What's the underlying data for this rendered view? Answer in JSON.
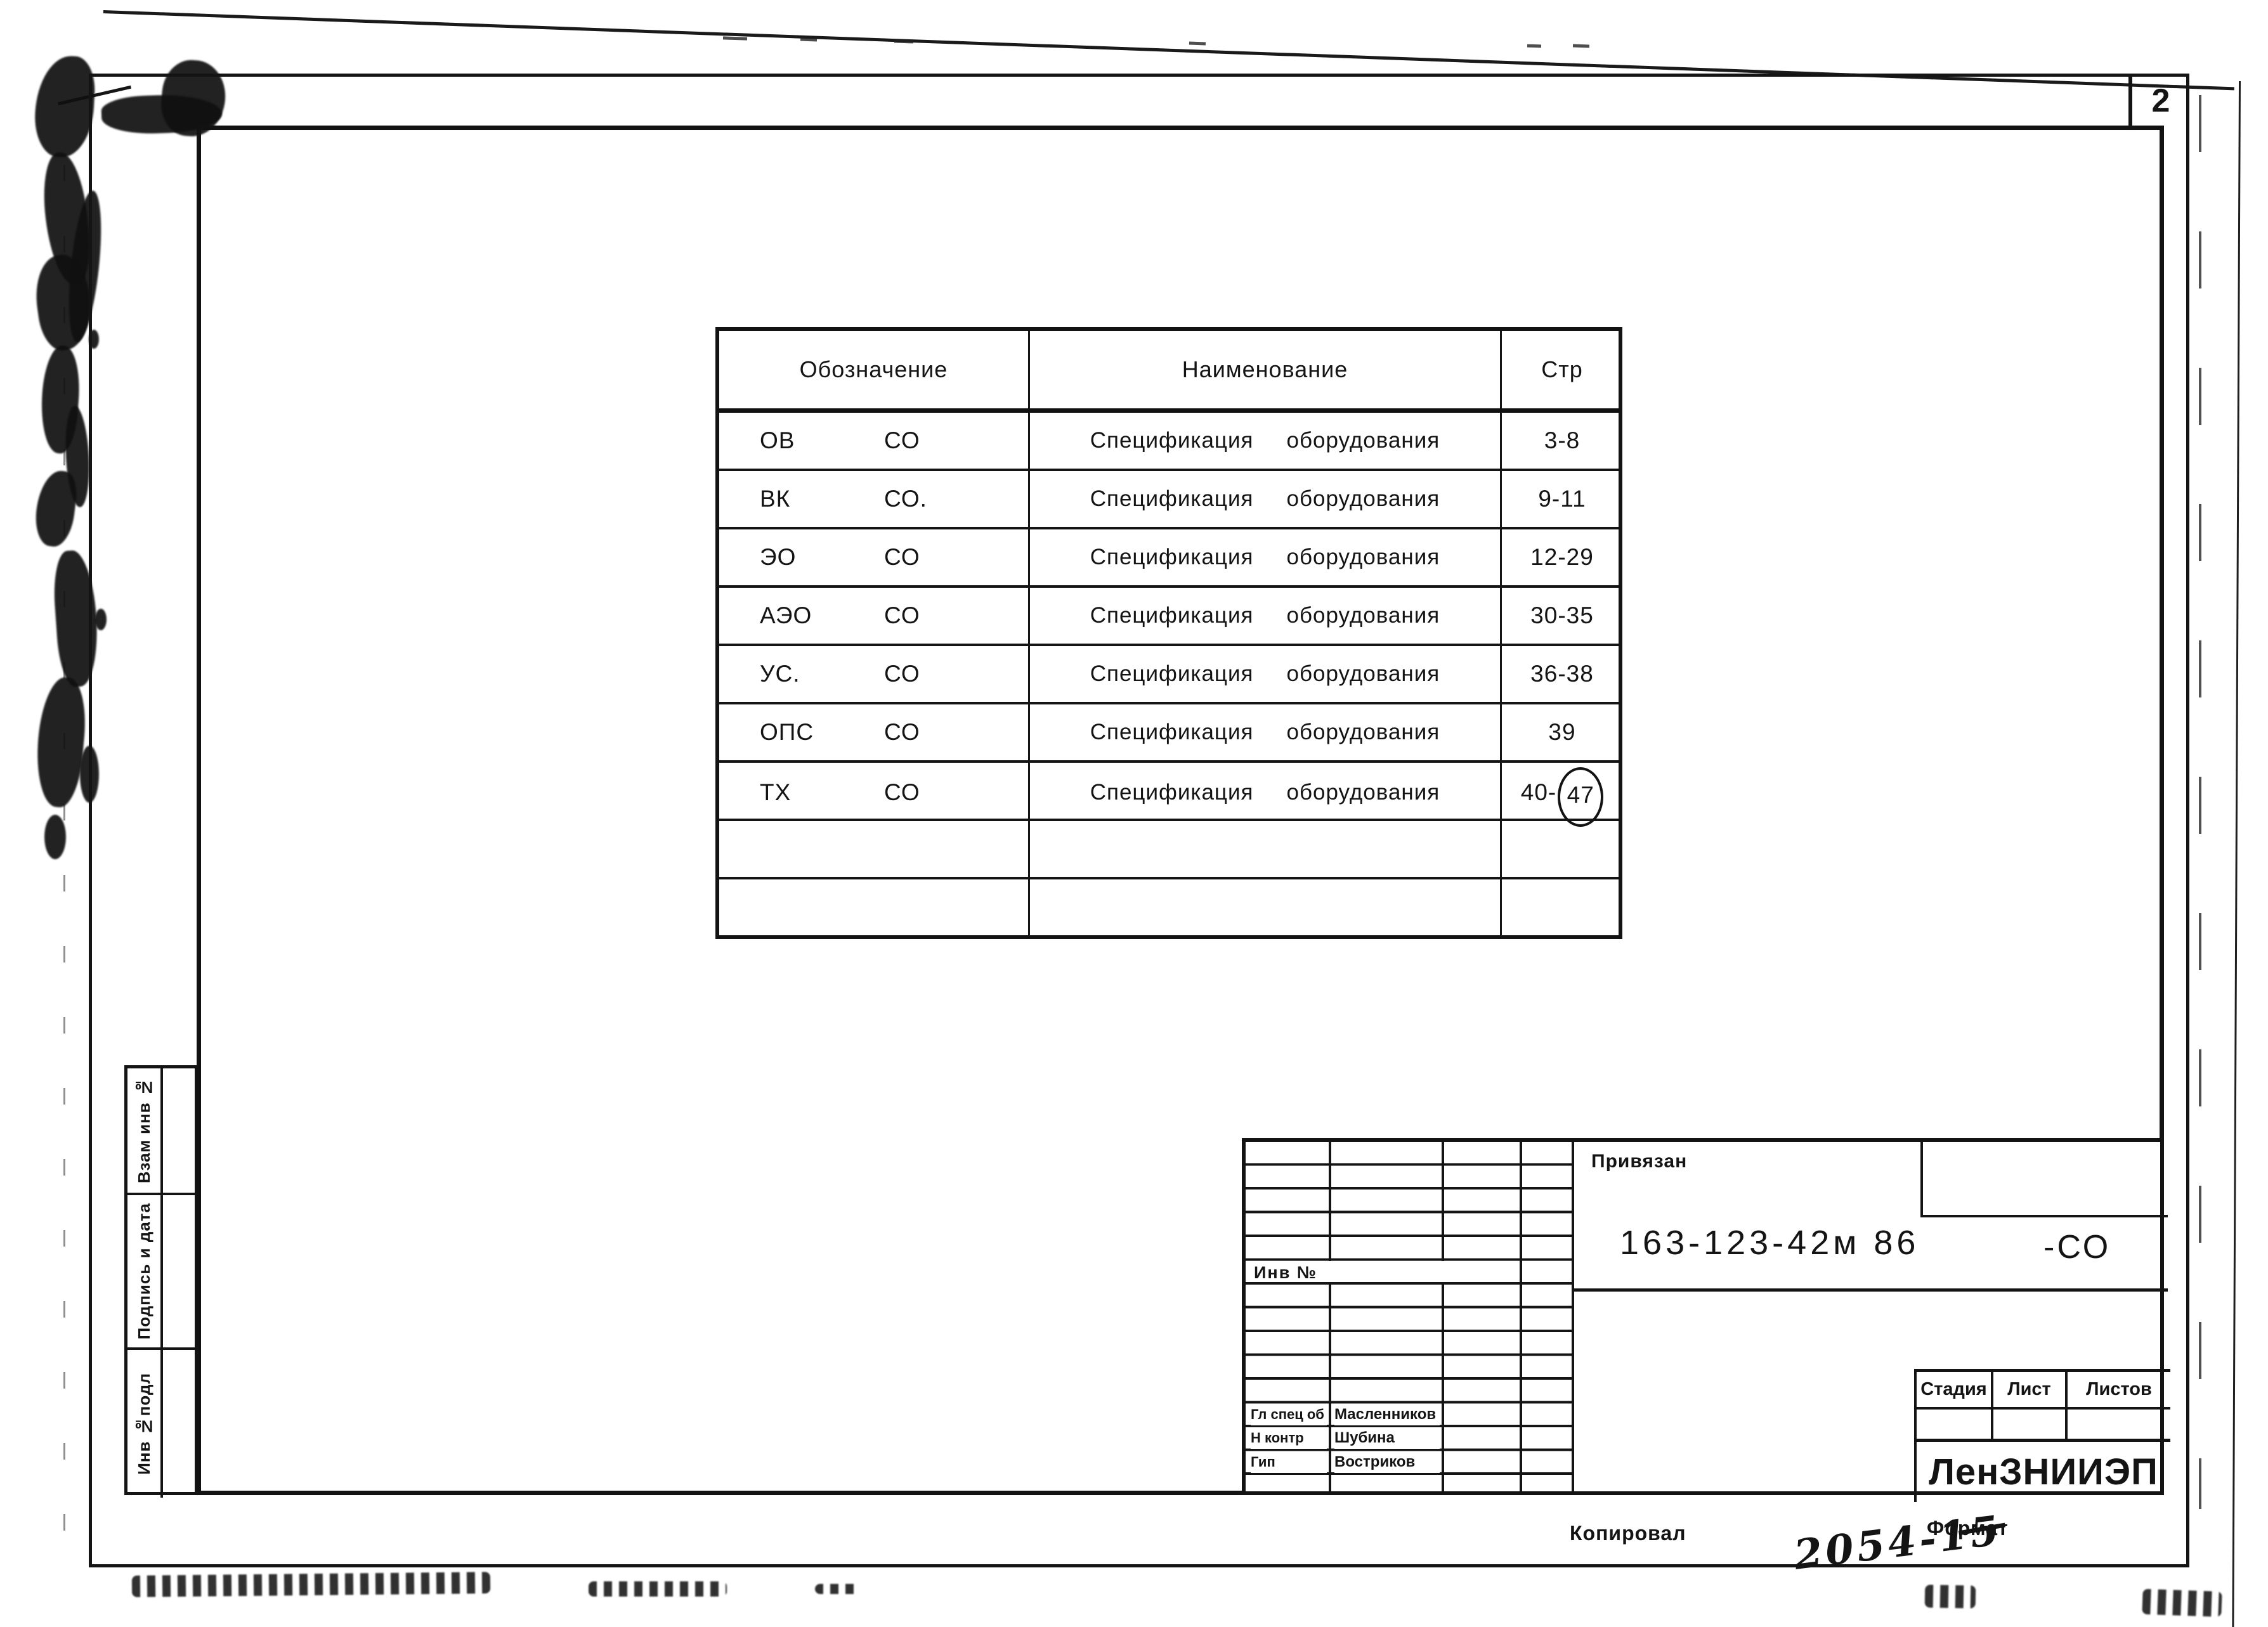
{
  "page": {
    "sheet_number": "2"
  },
  "toc": {
    "headers": {
      "designation": "Обозначение",
      "name": "Наименование",
      "page": "Стр"
    },
    "rows": [
      {
        "code": "ОВ",
        "co": "СО",
        "name1": "Спецификация",
        "name2": "оборудования",
        "pages": "3-8",
        "pages_circled": ""
      },
      {
        "code": "ВК",
        "co": "СО.",
        "name1": "Спецификация",
        "name2": "оборудования",
        "pages": "9-11",
        "pages_circled": ""
      },
      {
        "code": "ЭО",
        "co": "СО",
        "name1": "Спецификация",
        "name2": "оборудования",
        "pages": "12-29",
        "pages_circled": ""
      },
      {
        "code": "АЭО",
        "co": "СО",
        "name1": "Спецификация",
        "name2": "оборудования",
        "pages": "30-35",
        "pages_circled": ""
      },
      {
        "code": "УС.",
        "co": "СО",
        "name1": "Спецификация",
        "name2": "оборудования",
        "pages": "36-38",
        "pages_circled": ""
      },
      {
        "code": "ОПС",
        "co": "СО",
        "name1": "Спецификация",
        "name2": "оборудования",
        "pages": "39",
        "pages_circled": ""
      },
      {
        "code": "ТХ",
        "co": "СО",
        "name1": "Спецификация",
        "name2": "оборудования",
        "pages": "40-",
        "pages_circled": "47"
      }
    ],
    "empty_rows": 2
  },
  "margin_labels": [
    "Взам инв №",
    "Подпись и дата",
    "Инв №подл"
  ],
  "title_block": {
    "linked_label": "Привязан",
    "inv_label": "Инв №",
    "designation": "163-123-42м 86",
    "designation_suffix": "-СО",
    "signatures": [
      {
        "role": "Гл спец об",
        "name": "Масленников"
      },
      {
        "role": "Н контр",
        "name": "Шубина"
      },
      {
        "role": "Гип",
        "name": "Востриков"
      }
    ],
    "stage_headers": [
      "Стадия",
      "Лист",
      "Листов"
    ],
    "organization": "ЛенЗНИИЭП"
  },
  "footer": {
    "copied_label": "Копировал",
    "format_label": "Формат",
    "handwritten_number": "2054-15"
  }
}
